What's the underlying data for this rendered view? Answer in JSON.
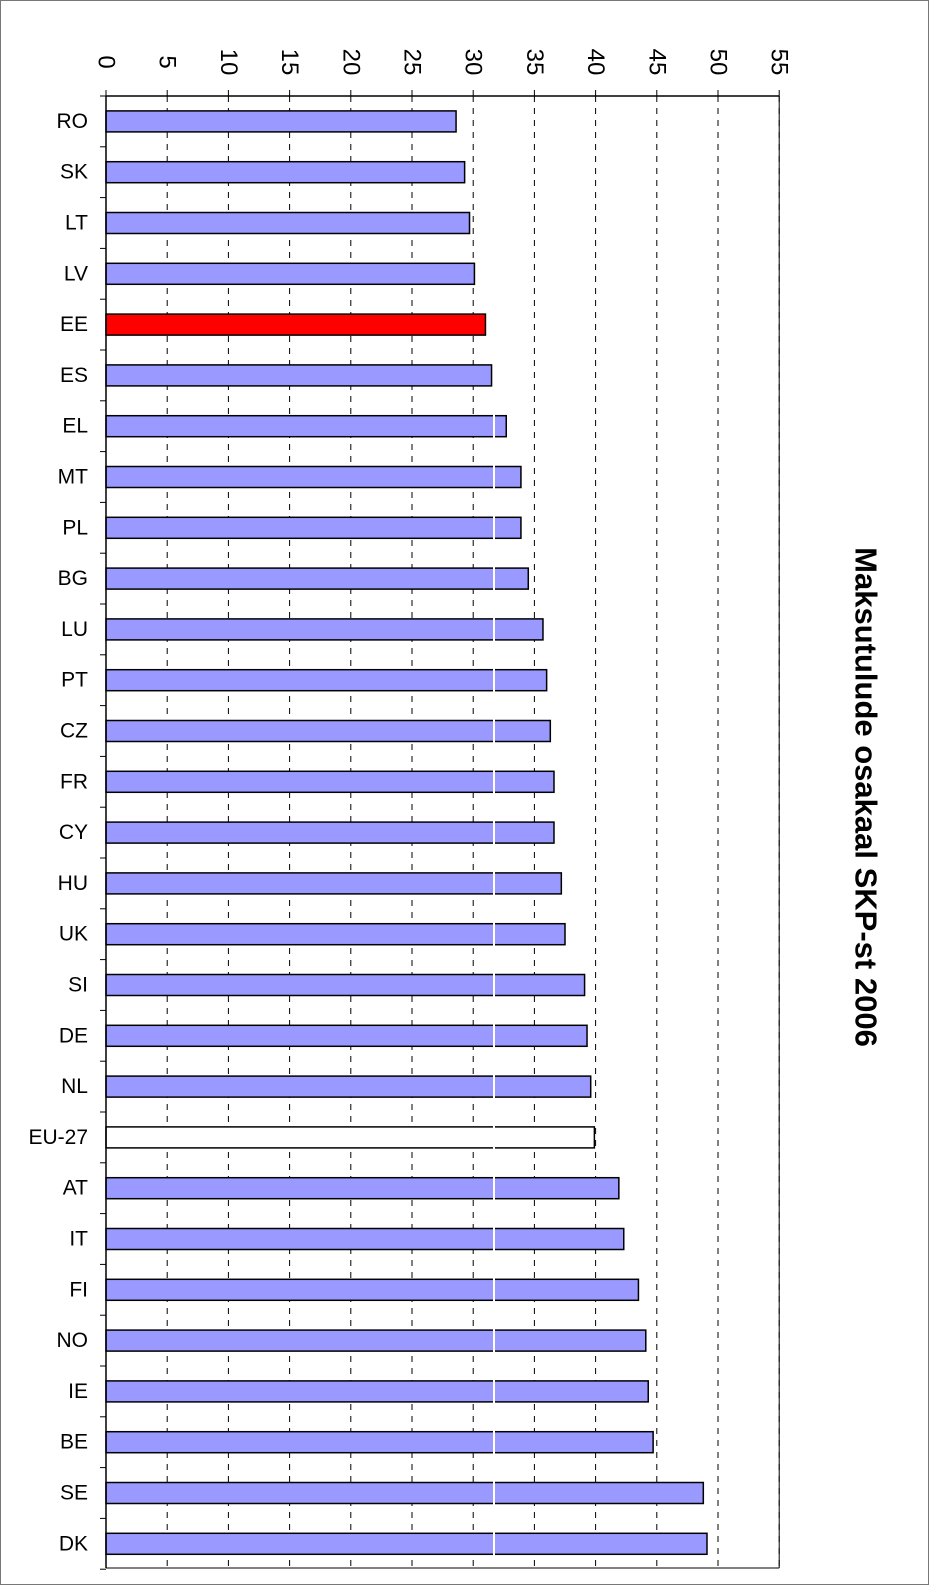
{
  "chart_data": {
    "type": "bar",
    "orientation": "horizontal",
    "title": "Maksutulude osakaal SKP-st 2006",
    "xlim": [
      0,
      55
    ],
    "x_ticks": [
      "0",
      "5",
      "10",
      "15",
      "20",
      "25",
      "30",
      "35",
      "40",
      "45",
      "50",
      "55"
    ],
    "grid": true,
    "categories": [
      "RO",
      "SK",
      "LT",
      "LV",
      "EE",
      "ES",
      "EL",
      "MT",
      "PL",
      "BG",
      "LU",
      "PT",
      "CZ",
      "FR",
      "CY",
      "HU",
      "UK",
      "SI",
      "DE",
      "NL",
      "EU-27",
      "AT",
      "IT",
      "FI",
      "NO",
      "IE",
      "BE",
      "SE",
      "DK"
    ],
    "values": [
      28.6,
      29.3,
      29.7,
      30.1,
      31.0,
      31.5,
      32.7,
      33.9,
      33.9,
      34.5,
      35.7,
      36.0,
      36.3,
      36.6,
      36.6,
      37.2,
      37.5,
      39.1,
      39.3,
      39.6,
      39.9,
      41.9,
      42.3,
      43.5,
      44.1,
      44.3,
      44.7,
      48.8,
      49.1
    ],
    "colors": {
      "default": "#9999ff",
      "highlight_EE": "#ff0000",
      "highlight_EU-27": "#ffffff",
      "outline": "#000000",
      "grid": "#000000"
    }
  }
}
